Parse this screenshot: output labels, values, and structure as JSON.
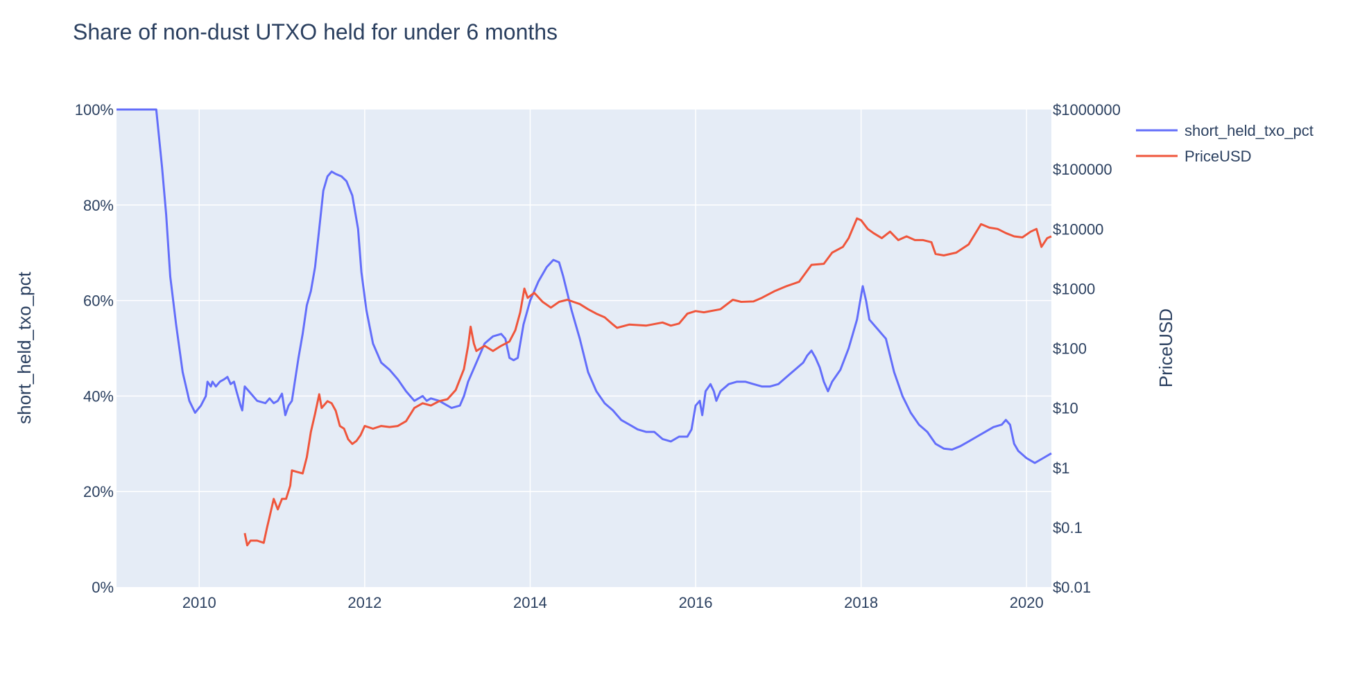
{
  "chart_data": {
    "type": "line",
    "title": "Share of non-dust UTXO held for under 6 months",
    "xlabel": "",
    "ylabel": "short_held_txo_pct",
    "y2label": "PriceUSD",
    "xlim": [
      2009.0,
      2020.3
    ],
    "ylim": [
      0,
      100
    ],
    "y2lim": [
      0.01,
      1000000
    ],
    "y2_scale": "log",
    "grid": true,
    "legend_position": "top-right",
    "x_ticks": [
      "2010",
      "2012",
      "2014",
      "2016",
      "2018",
      "2020"
    ],
    "x_tick_values": [
      2010,
      2012,
      2014,
      2016,
      2018,
      2020
    ],
    "y_ticks": [
      "0%",
      "20%",
      "40%",
      "60%",
      "80%",
      "100%"
    ],
    "y_tick_values": [
      0,
      20,
      40,
      60,
      80,
      100
    ],
    "y2_ticks": [
      "$0.01",
      "$0.1",
      "$1",
      "$10",
      "$100",
      "$1000",
      "$10000",
      "$100000",
      "$1000000"
    ],
    "y2_tick_values": [
      0.01,
      0.1,
      1,
      10,
      100,
      1000,
      10000,
      100000,
      1000000
    ],
    "series": [
      {
        "name": "short_held_txo_pct",
        "axis": "y",
        "color": "#636efa",
        "points": [
          [
            2009.0,
            100
          ],
          [
            2009.48,
            100
          ],
          [
            2009.55,
            88
          ],
          [
            2009.6,
            78
          ],
          [
            2009.65,
            65
          ],
          [
            2009.72,
            55
          ],
          [
            2009.8,
            45
          ],
          [
            2009.88,
            39
          ],
          [
            2009.95,
            36.5
          ],
          [
            2010.02,
            38
          ],
          [
            2010.08,
            40
          ],
          [
            2010.1,
            43
          ],
          [
            2010.14,
            42
          ],
          [
            2010.16,
            43
          ],
          [
            2010.2,
            42
          ],
          [
            2010.25,
            43
          ],
          [
            2010.3,
            43.5
          ],
          [
            2010.34,
            44
          ],
          [
            2010.38,
            42.5
          ],
          [
            2010.42,
            43
          ],
          [
            2010.45,
            41
          ],
          [
            2010.5,
            38
          ],
          [
            2010.52,
            37
          ],
          [
            2010.55,
            42
          ],
          [
            2010.6,
            41
          ],
          [
            2010.7,
            39
          ],
          [
            2010.8,
            38.5
          ],
          [
            2010.85,
            39.5
          ],
          [
            2010.9,
            38.5
          ],
          [
            2010.95,
            39
          ],
          [
            2011.0,
            40.5
          ],
          [
            2011.04,
            36
          ],
          [
            2011.08,
            38
          ],
          [
            2011.12,
            39
          ],
          [
            2011.2,
            48
          ],
          [
            2011.25,
            53
          ],
          [
            2011.3,
            59
          ],
          [
            2011.35,
            62
          ],
          [
            2011.4,
            67
          ],
          [
            2011.45,
            75
          ],
          [
            2011.5,
            83
          ],
          [
            2011.55,
            86
          ],
          [
            2011.6,
            87
          ],
          [
            2011.65,
            86.5
          ],
          [
            2011.72,
            86
          ],
          [
            2011.78,
            85
          ],
          [
            2011.85,
            82
          ],
          [
            2011.92,
            75
          ],
          [
            2011.96,
            66
          ],
          [
            2012.02,
            58
          ],
          [
            2012.1,
            51
          ],
          [
            2012.2,
            47
          ],
          [
            2012.3,
            45.5
          ],
          [
            2012.4,
            43.5
          ],
          [
            2012.5,
            41
          ],
          [
            2012.6,
            39
          ],
          [
            2012.7,
            40
          ],
          [
            2012.75,
            39
          ],
          [
            2012.8,
            39.5
          ],
          [
            2012.9,
            39
          ],
          [
            2013.0,
            38
          ],
          [
            2013.05,
            37.5
          ],
          [
            2013.15,
            38
          ],
          [
            2013.2,
            40
          ],
          [
            2013.25,
            43
          ],
          [
            2013.35,
            47
          ],
          [
            2013.45,
            51
          ],
          [
            2013.55,
            52.5
          ],
          [
            2013.65,
            53
          ],
          [
            2013.7,
            52
          ],
          [
            2013.75,
            48
          ],
          [
            2013.8,
            47.5
          ],
          [
            2013.85,
            48
          ],
          [
            2013.92,
            55
          ],
          [
            2014.0,
            60
          ],
          [
            2014.1,
            64
          ],
          [
            2014.2,
            67
          ],
          [
            2014.28,
            68.5
          ],
          [
            2014.35,
            68
          ],
          [
            2014.4,
            65
          ],
          [
            2014.5,
            58
          ],
          [
            2014.6,
            52
          ],
          [
            2014.7,
            45
          ],
          [
            2014.8,
            41
          ],
          [
            2014.9,
            38.5
          ],
          [
            2015.0,
            37
          ],
          [
            2015.1,
            35
          ],
          [
            2015.2,
            34
          ],
          [
            2015.3,
            33
          ],
          [
            2015.4,
            32.5
          ],
          [
            2015.5,
            32.5
          ],
          [
            2015.6,
            31
          ],
          [
            2015.7,
            30.5
          ],
          [
            2015.8,
            31.5
          ],
          [
            2015.9,
            31.5
          ],
          [
            2015.95,
            33
          ],
          [
            2016.0,
            38
          ],
          [
            2016.05,
            39
          ],
          [
            2016.08,
            36
          ],
          [
            2016.12,
            41
          ],
          [
            2016.18,
            42.5
          ],
          [
            2016.22,
            41
          ],
          [
            2016.25,
            39
          ],
          [
            2016.3,
            41
          ],
          [
            2016.4,
            42.5
          ],
          [
            2016.5,
            43
          ],
          [
            2016.6,
            43
          ],
          [
            2016.7,
            42.5
          ],
          [
            2016.8,
            42
          ],
          [
            2016.9,
            42
          ],
          [
            2017.0,
            42.5
          ],
          [
            2017.1,
            44
          ],
          [
            2017.2,
            45.5
          ],
          [
            2017.3,
            47
          ],
          [
            2017.35,
            48.5
          ],
          [
            2017.4,
            49.5
          ],
          [
            2017.45,
            48
          ],
          [
            2017.5,
            46
          ],
          [
            2017.55,
            43
          ],
          [
            2017.6,
            41
          ],
          [
            2017.65,
            43
          ],
          [
            2017.75,
            45.5
          ],
          [
            2017.85,
            50
          ],
          [
            2017.95,
            56
          ],
          [
            2018.02,
            63
          ],
          [
            2018.06,
            60
          ],
          [
            2018.1,
            56
          ],
          [
            2018.2,
            54
          ],
          [
            2018.3,
            52
          ],
          [
            2018.4,
            45
          ],
          [
            2018.5,
            40
          ],
          [
            2018.6,
            36.5
          ],
          [
            2018.7,
            34
          ],
          [
            2018.8,
            32.5
          ],
          [
            2018.9,
            30
          ],
          [
            2019.0,
            29
          ],
          [
            2019.1,
            28.8
          ],
          [
            2019.2,
            29.5
          ],
          [
            2019.3,
            30.5
          ],
          [
            2019.4,
            31.5
          ],
          [
            2019.5,
            32.5
          ],
          [
            2019.6,
            33.5
          ],
          [
            2019.7,
            34
          ],
          [
            2019.75,
            35
          ],
          [
            2019.8,
            34
          ],
          [
            2019.85,
            30
          ],
          [
            2019.9,
            28.5
          ],
          [
            2020.0,
            27
          ],
          [
            2020.1,
            26
          ],
          [
            2020.2,
            27
          ],
          [
            2020.3,
            28
          ]
        ]
      },
      {
        "name": "PriceUSD",
        "axis": "y2",
        "color": "#ef553b",
        "points": [
          [
            2010.55,
            0.08
          ],
          [
            2010.58,
            0.05
          ],
          [
            2010.62,
            0.06
          ],
          [
            2010.7,
            0.06
          ],
          [
            2010.78,
            0.055
          ],
          [
            2010.82,
            0.1
          ],
          [
            2010.85,
            0.15
          ],
          [
            2010.9,
            0.3
          ],
          [
            2010.95,
            0.2
          ],
          [
            2011.0,
            0.3
          ],
          [
            2011.05,
            0.3
          ],
          [
            2011.1,
            0.5
          ],
          [
            2011.12,
            0.9
          ],
          [
            2011.18,
            0.85
          ],
          [
            2011.25,
            0.8
          ],
          [
            2011.3,
            1.5
          ],
          [
            2011.35,
            4
          ],
          [
            2011.4,
            8
          ],
          [
            2011.45,
            17
          ],
          [
            2011.48,
            10
          ],
          [
            2011.55,
            13
          ],
          [
            2011.6,
            12
          ],
          [
            2011.65,
            9
          ],
          [
            2011.7,
            5
          ],
          [
            2011.75,
            4.5
          ],
          [
            2011.8,
            3
          ],
          [
            2011.85,
            2.5
          ],
          [
            2011.9,
            2.8
          ],
          [
            2011.95,
            3.5
          ],
          [
            2012.0,
            5
          ],
          [
            2012.1,
            4.5
          ],
          [
            2012.2,
            5
          ],
          [
            2012.3,
            4.8
          ],
          [
            2012.4,
            5
          ],
          [
            2012.5,
            6
          ],
          [
            2012.6,
            10
          ],
          [
            2012.7,
            12
          ],
          [
            2012.8,
            11
          ],
          [
            2012.9,
            13
          ],
          [
            2013.0,
            14
          ],
          [
            2013.1,
            20
          ],
          [
            2013.2,
            45
          ],
          [
            2013.25,
            110
          ],
          [
            2013.28,
            230
          ],
          [
            2013.32,
            120
          ],
          [
            2013.35,
            90
          ],
          [
            2013.45,
            110
          ],
          [
            2013.55,
            90
          ],
          [
            2013.65,
            110
          ],
          [
            2013.75,
            130
          ],
          [
            2013.82,
            200
          ],
          [
            2013.88,
            400
          ],
          [
            2013.93,
            1000
          ],
          [
            2013.97,
            700
          ],
          [
            2014.05,
            850
          ],
          [
            2014.15,
            600
          ],
          [
            2014.25,
            480
          ],
          [
            2014.35,
            600
          ],
          [
            2014.45,
            650
          ],
          [
            2014.6,
            550
          ],
          [
            2014.7,
            450
          ],
          [
            2014.8,
            380
          ],
          [
            2014.9,
            330
          ],
          [
            2015.0,
            250
          ],
          [
            2015.05,
            220
          ],
          [
            2015.2,
            250
          ],
          [
            2015.4,
            240
          ],
          [
            2015.6,
            270
          ],
          [
            2015.7,
            240
          ],
          [
            2015.8,
            260
          ],
          [
            2015.9,
            380
          ],
          [
            2016.0,
            420
          ],
          [
            2016.1,
            400
          ],
          [
            2016.3,
            450
          ],
          [
            2016.45,
            650
          ],
          [
            2016.55,
            600
          ],
          [
            2016.7,
            610
          ],
          [
            2016.8,
            700
          ],
          [
            2016.95,
            900
          ],
          [
            2017.1,
            1100
          ],
          [
            2017.25,
            1300
          ],
          [
            2017.4,
            2500
          ],
          [
            2017.55,
            2600
          ],
          [
            2017.65,
            4000
          ],
          [
            2017.78,
            5000
          ],
          [
            2017.85,
            7000
          ],
          [
            2017.95,
            15000
          ],
          [
            2018.0,
            14000
          ],
          [
            2018.08,
            10000
          ],
          [
            2018.15,
            8500
          ],
          [
            2018.25,
            7000
          ],
          [
            2018.35,
            9000
          ],
          [
            2018.45,
            6500
          ],
          [
            2018.55,
            7500
          ],
          [
            2018.65,
            6500
          ],
          [
            2018.75,
            6500
          ],
          [
            2018.85,
            6000
          ],
          [
            2018.9,
            3800
          ],
          [
            2019.0,
            3600
          ],
          [
            2019.15,
            4000
          ],
          [
            2019.3,
            5500
          ],
          [
            2019.45,
            12000
          ],
          [
            2019.55,
            10500
          ],
          [
            2019.65,
            10000
          ],
          [
            2019.75,
            8500
          ],
          [
            2019.85,
            7500
          ],
          [
            2019.95,
            7200
          ],
          [
            2020.05,
            9000
          ],
          [
            2020.12,
            10000
          ],
          [
            2020.18,
            5000
          ],
          [
            2020.25,
            7000
          ],
          [
            2020.3,
            7500
          ]
        ]
      }
    ]
  }
}
